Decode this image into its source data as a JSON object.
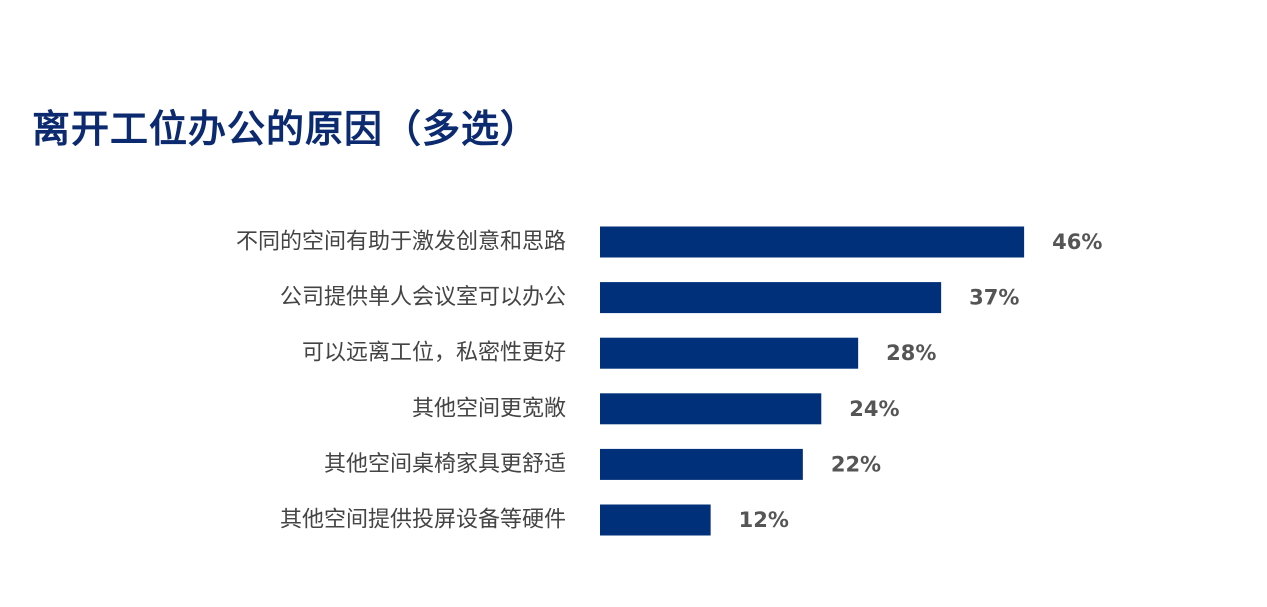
{
  "chart_data": {
    "type": "bar",
    "orientation": "horizontal",
    "title": "离开工位办公的原因（多选）",
    "categories": [
      "不同的空间有助于激发创意和思路",
      "公司提供单人会议室可以办公",
      "可以远离工位，私密性更好",
      "其他空间更宽敞",
      "其他空间桌椅家具更舒适",
      "其他空间提供投屏设备等硬件"
    ],
    "values": [
      46,
      37,
      28,
      24,
      22,
      12
    ],
    "value_labels": [
      "46%",
      "37%",
      "28%",
      "24%",
      "22%",
      "12%"
    ],
    "unit": "%",
    "xlim": [
      0,
      100
    ],
    "grid": false,
    "legend": "none",
    "bar_color": "#00307a",
    "label_color": "#444444",
    "value_color": "#555555",
    "title_color": "#0b2a6f"
  }
}
